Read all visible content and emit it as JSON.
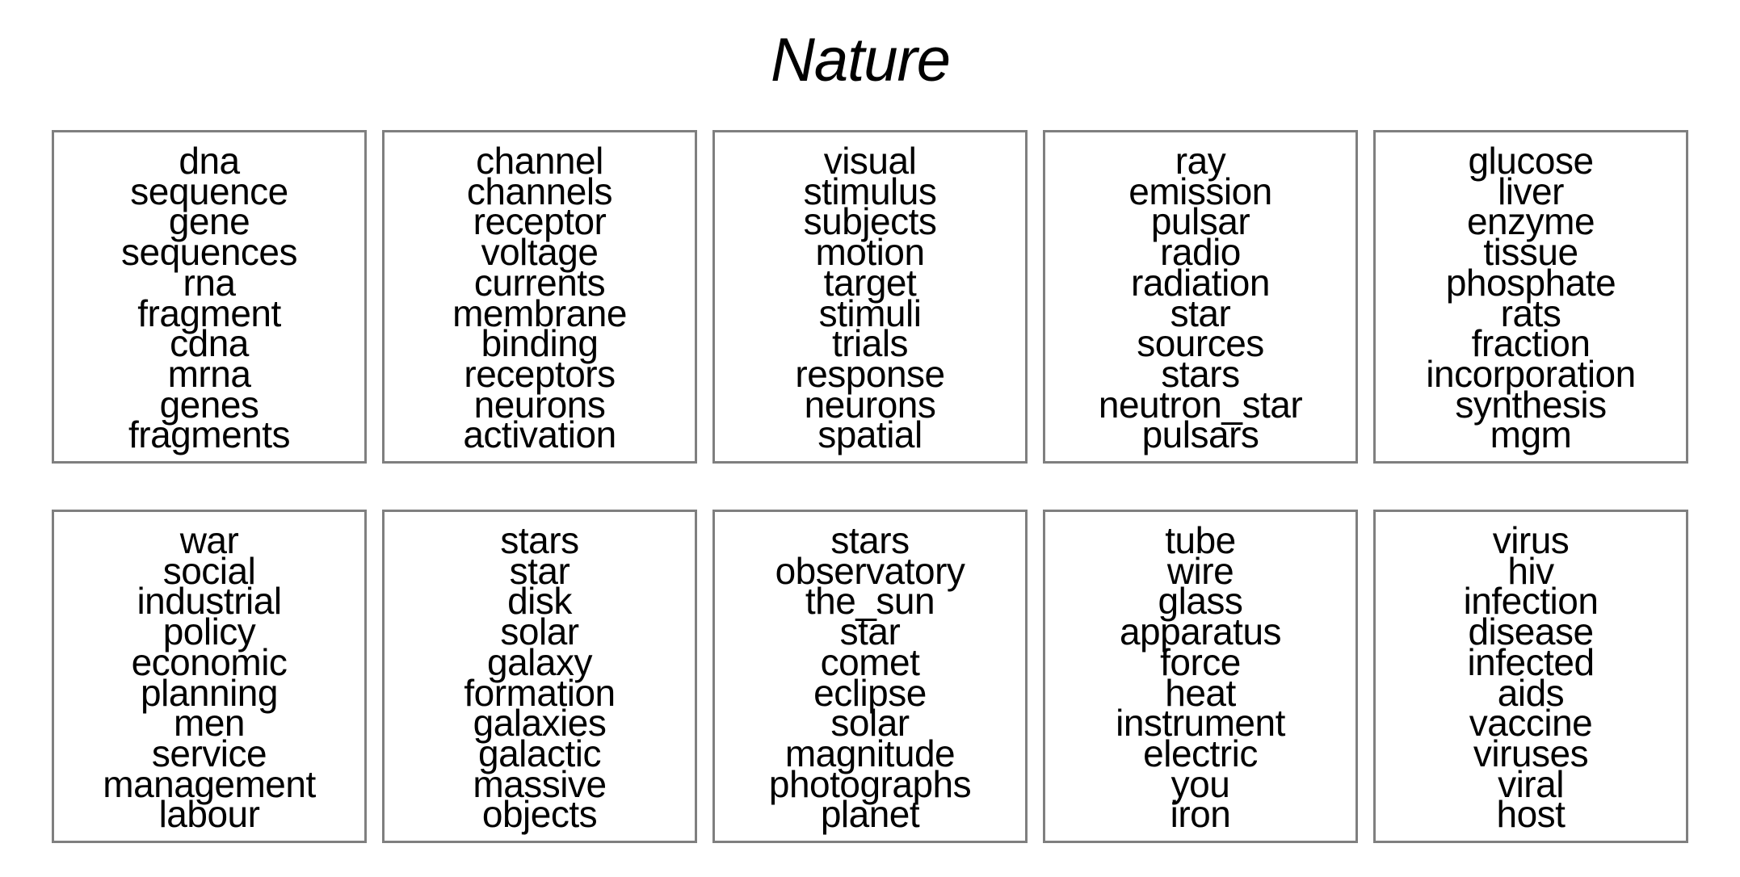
{
  "title": "Nature",
  "topics": [
    [
      "dna",
      "sequence",
      "gene",
      "sequences",
      "rna",
      "fragment",
      "cdna",
      "mrna",
      "genes",
      "fragments"
    ],
    [
      "channel",
      "channels",
      "receptor",
      "voltage",
      "currents",
      "membrane",
      "binding",
      "receptors",
      "neurons",
      "activation"
    ],
    [
      "visual",
      "stimulus",
      "subjects",
      "motion",
      "target",
      "stimuli",
      "trials",
      "response",
      "neurons",
      "spatial"
    ],
    [
      "ray",
      "emission",
      "pulsar",
      "radio",
      "radiation",
      "star",
      "sources",
      "stars",
      "neutron_star",
      "pulsars"
    ],
    [
      "glucose",
      "liver",
      "enzyme",
      "tissue",
      "phosphate",
      "rats",
      "fraction",
      "incorporation",
      "synthesis",
      "mgm"
    ],
    [
      "war",
      "social",
      "industrial",
      "policy",
      "economic",
      "planning",
      "men",
      "service",
      "management",
      "labour"
    ],
    [
      "stars",
      "star",
      "disk",
      "solar",
      "galaxy",
      "formation",
      "galaxies",
      "galactic",
      "massive",
      "objects"
    ],
    [
      "stars",
      "observatory",
      "the_sun",
      "star",
      "comet",
      "eclipse",
      "solar",
      "magnitude",
      "photographs",
      "planet"
    ],
    [
      "tube",
      "wire",
      "glass",
      "apparatus",
      "force",
      "heat",
      "instrument",
      "electric",
      "you",
      "iron"
    ],
    [
      "virus",
      "hiv",
      "infection",
      "disease",
      "infected",
      "aids",
      "vaccine",
      "viruses",
      "viral",
      "host"
    ]
  ]
}
